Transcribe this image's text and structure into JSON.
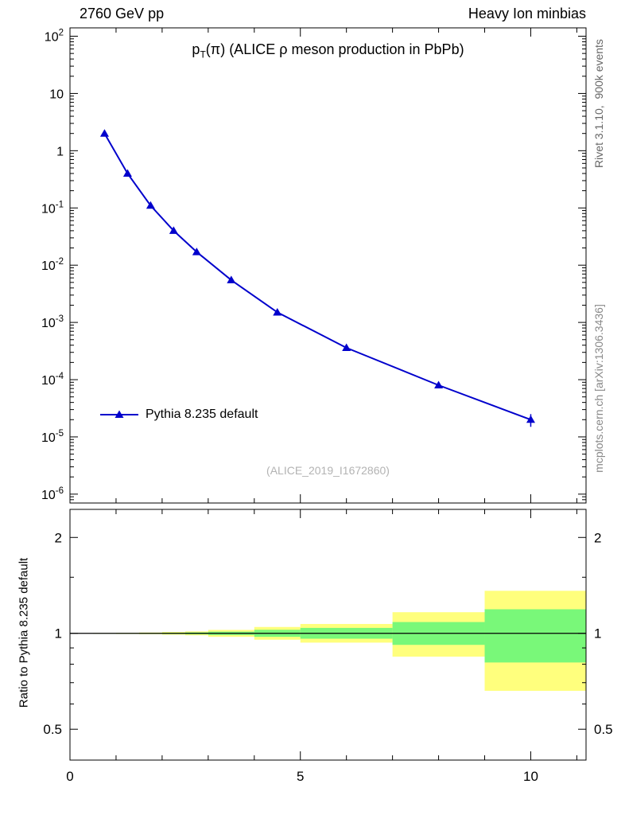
{
  "header": {
    "left": "2760 GeV pp",
    "right": "Heavy Ion minbias"
  },
  "side": {
    "rivet": "Rivet 3.1.10,  900k events",
    "mcplots": "mcplots.cern.ch [arXiv:1306.3436]"
  },
  "main": {
    "title_prefix": "p",
    "title_sub": "T",
    "title_suffix": "(π) (ALICE ρ meson production in PbPb)",
    "watermark": "(ALICE_2019_I1672860)"
  },
  "legend": {
    "label": "Pythia 8.235 default"
  },
  "ratio": {
    "ylabel": "Ratio to Pythia 8.235 default"
  },
  "chart_data": [
    {
      "type": "line",
      "title": "pT(π) (ALICE ρ meson production in PbPb)",
      "yscale": "log",
      "xlim": [
        0,
        11.2
      ],
      "ylim": [
        7e-07,
        140
      ],
      "xticks_major": [
        0,
        5,
        10
      ],
      "xtick_labels": [
        "0",
        "5",
        "10"
      ],
      "xticks_minor": [
        1,
        2,
        3,
        4,
        6,
        7,
        8,
        9,
        11
      ],
      "yticks": [
        [
          100,
          "10^{2}"
        ],
        [
          10,
          "10"
        ],
        [
          1,
          "1"
        ],
        [
          0.1,
          "10^{-1}"
        ],
        [
          0.01,
          "10^{-2}"
        ],
        [
          0.001,
          "10^{-3}"
        ],
        [
          0.0001,
          "10^{-4}"
        ],
        [
          1e-05,
          "10^{-5}"
        ],
        [
          1e-06,
          "10^{-6}"
        ]
      ],
      "series": [
        {
          "name": "Pythia 8.235 default",
          "color": "#0000cc",
          "marker": "triangle-up",
          "x": [
            0.75,
            1.25,
            1.75,
            2.25,
            2.75,
            3.5,
            4.5,
            6,
            8,
            10
          ],
          "y": [
            2.0,
            0.4,
            0.11,
            0.04,
            0.017,
            0.0055,
            0.0015,
            0.00036,
            8e-05,
            2e-05
          ],
          "yerr": [
            0,
            0,
            0,
            0,
            0,
            0,
            0,
            0,
            8e-06,
            5e-06
          ]
        }
      ],
      "legend_position": "left-middle"
    },
    {
      "type": "band",
      "ylabel": "Ratio to Pythia 8.235 default",
      "yscale": "log",
      "xlim": [
        0,
        11.2
      ],
      "ylim": [
        0.4,
        2.45
      ],
      "yticks": [
        [
          2,
          "2"
        ],
        [
          1,
          "1"
        ],
        [
          0.5,
          "0.5"
        ]
      ],
      "yticks_minor": [
        0.6,
        0.7,
        0.8,
        0.9,
        1.5
      ],
      "reference_line": 1.0,
      "band_colors": {
        "outer": "#ffff7d",
        "inner": "#79f879"
      },
      "bins": [
        {
          "x": [
            0.5,
            1.0
          ],
          "outer": [
            0.998,
            1.002
          ],
          "inner": [
            0.999,
            1.001
          ]
        },
        {
          "x": [
            1.0,
            1.5
          ],
          "outer": [
            0.996,
            1.004
          ],
          "inner": [
            0.998,
            1.002
          ]
        },
        {
          "x": [
            1.5,
            2.0
          ],
          "outer": [
            0.994,
            1.006
          ],
          "inner": [
            0.997,
            1.003
          ]
        },
        {
          "x": [
            2.0,
            2.5
          ],
          "outer": [
            0.99,
            1.01
          ],
          "inner": [
            0.995,
            1.005
          ]
        },
        {
          "x": [
            2.5,
            3.0
          ],
          "outer": [
            0.986,
            1.014
          ],
          "inner": [
            0.993,
            1.007
          ]
        },
        {
          "x": [
            3.0,
            4.0
          ],
          "outer": [
            0.975,
            1.025
          ],
          "inner": [
            0.988,
            1.012
          ]
        },
        {
          "x": [
            4.0,
            5.0
          ],
          "outer": [
            0.955,
            1.047
          ],
          "inner": [
            0.975,
            1.026
          ]
        },
        {
          "x": [
            5.0,
            7.0
          ],
          "outer": [
            0.935,
            1.07
          ],
          "inner": [
            0.962,
            1.04
          ]
        },
        {
          "x": [
            7.0,
            9.0
          ],
          "outer": [
            0.845,
            1.165
          ],
          "inner": [
            0.92,
            1.085
          ]
        },
        {
          "x": [
            9.0,
            11.2
          ],
          "outer": [
            0.66,
            1.36
          ],
          "inner": [
            0.81,
            1.19
          ]
        }
      ]
    }
  ]
}
